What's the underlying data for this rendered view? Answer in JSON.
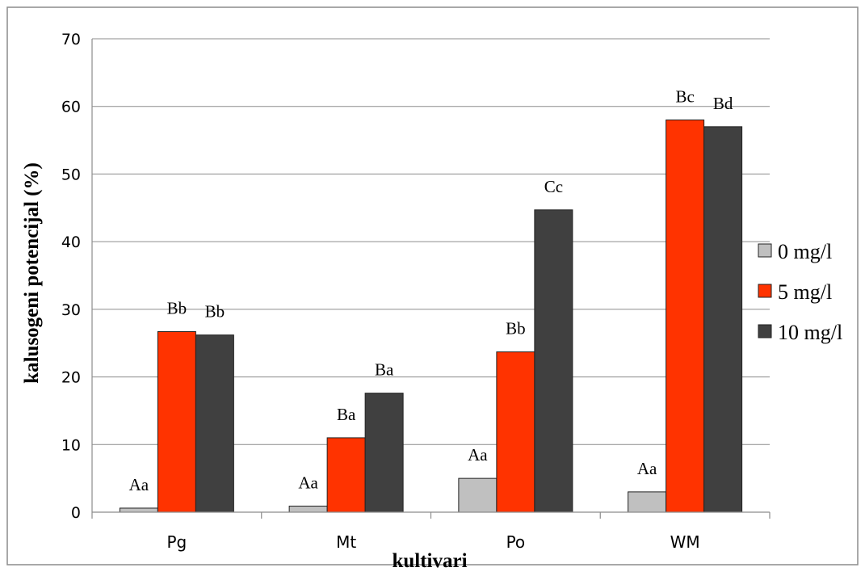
{
  "chart_data": {
    "type": "bar",
    "title": "",
    "xlabel": "kultivari",
    "ylabel": "kalusogeni potencijal (%)",
    "ylim": [
      0,
      70
    ],
    "yticks": [
      0,
      10,
      20,
      30,
      40,
      50,
      60,
      70
    ],
    "grid": true,
    "legend_position": "right",
    "categories": [
      "Pg",
      "Mt",
      "Po",
      "WM"
    ],
    "series": [
      {
        "name": "0 mg/l",
        "color": "#c0c0c0",
        "values": [
          0.6,
          0.9,
          5.0,
          3.0
        ],
        "labels": [
          "Aa",
          "Aa",
          "Aa",
          "Aa"
        ]
      },
      {
        "name": "5 mg/l",
        "color": "#ff3300",
        "values": [
          26.7,
          11.0,
          23.7,
          58.0
        ],
        "labels": [
          "Bb",
          "Ba",
          "Bb",
          "Bc"
        ]
      },
      {
        "name": "10 mg/l",
        "color": "#404040",
        "values": [
          26.2,
          17.6,
          44.7,
          57.0
        ],
        "labels": [
          "Bb",
          "Ba",
          "Cc",
          "Bd"
        ]
      }
    ]
  }
}
